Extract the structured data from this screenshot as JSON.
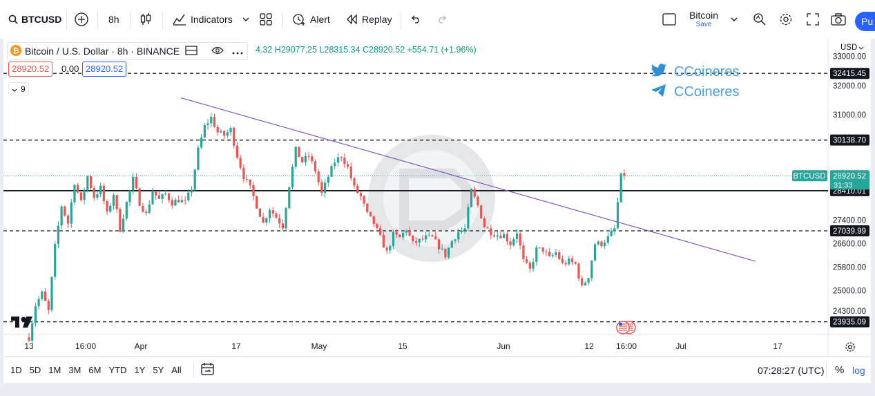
{
  "toolbar": {
    "symbol": "BTCUSD",
    "interval": "8h",
    "indicators_label": "Indicators",
    "alert_label": "Alert",
    "replay_label": "Replay",
    "layout_name": "Bitcoin",
    "layout_sub": "Save",
    "publish_label": "Pu"
  },
  "legend": {
    "title": "Bitcoin / U.S. Dollar · 8h · BINANCE",
    "ohlc": "4.32  H29077.25  L28315.34  C28920.52  +554.71 (+1.96%)",
    "bid": "28920.52",
    "spread": "0.00",
    "ask": "28920.52",
    "indicator_count": "9"
  },
  "watermark": {
    "twitter_handle": "CCoineres",
    "telegram_handle": "CCoineres"
  },
  "bottom": {
    "ranges": [
      "1D",
      "5D",
      "1M",
      "3M",
      "6M",
      "YTD",
      "1Y",
      "5Y",
      "All"
    ],
    "clock": "07:28:27 (UTC)",
    "percent": "%",
    "log": "log"
  },
  "colors": {
    "up": "#26a69a",
    "down": "#ef5350",
    "trendline": "#7e57c2",
    "accent": "#2962ff"
  },
  "chart_data": {
    "type": "candlestick",
    "currency": "USD",
    "y_range": [
      23500,
      33600
    ],
    "x_ticks": [
      "13",
      "16:00",
      "Apr",
      "17",
      "May",
      "15",
      "Jun",
      "12",
      "16:00",
      "Jul",
      "17"
    ],
    "y_ticks": [
      "33000.00",
      "32000.00",
      "31000.00",
      "27400.00",
      "26600.00",
      "25800.00",
      "25000.00",
      "24300.00"
    ],
    "levels": [
      {
        "label": "32415.45",
        "value": 32415.45,
        "style": "dashed"
      },
      {
        "label": "30138.70",
        "value": 30138.7,
        "style": "dashed"
      },
      {
        "label": "28410.01",
        "value": 28410.01,
        "style": "solid"
      },
      {
        "label": "27039.99",
        "value": 27039.99,
        "style": "dashed"
      },
      {
        "label": "23935.09",
        "value": 23935.09,
        "style": "dashed"
      }
    ],
    "last_price": {
      "symbol": "BTCUSD",
      "value": 28920.52,
      "countdown": "31:33"
    },
    "trendline": [
      {
        "date": "Apr 9",
        "value": 31580
      },
      {
        "date": "Jul 8",
        "value": 26000
      }
    ],
    "price_path": [
      [
        0,
        23400
      ],
      [
        2,
        24500
      ],
      [
        4,
        24900
      ],
      [
        6,
        24300
      ],
      [
        8,
        26500
      ],
      [
        10,
        27900
      ],
      [
        12,
        27300
      ],
      [
        14,
        28700
      ],
      [
        16,
        28000
      ],
      [
        18,
        28900
      ],
      [
        20,
        28200
      ],
      [
        22,
        28500
      ],
      [
        24,
        27600
      ],
      [
        26,
        28300
      ],
      [
        28,
        27100
      ],
      [
        30,
        28000
      ],
      [
        32,
        28800
      ],
      [
        34,
        28000
      ],
      [
        36,
        27600
      ],
      [
        38,
        28400
      ],
      [
        40,
        28100
      ],
      [
        42,
        28300
      ],
      [
        44,
        28000
      ],
      [
        46,
        28100
      ],
      [
        48,
        28000
      ],
      [
        50,
        28500
      ],
      [
        52,
        29800
      ],
      [
        54,
        30600
      ],
      [
        56,
        30900
      ],
      [
        58,
        30400
      ],
      [
        60,
        30300
      ],
      [
        62,
        30500
      ],
      [
        64,
        29600
      ],
      [
        66,
        28900
      ],
      [
        68,
        28500
      ],
      [
        70,
        27900
      ],
      [
        72,
        27300
      ],
      [
        74,
        27800
      ],
      [
        76,
        27500
      ],
      [
        78,
        27200
      ],
      [
        80,
        28600
      ],
      [
        82,
        29800
      ],
      [
        84,
        29400
      ],
      [
        86,
        29600
      ],
      [
        88,
        29100
      ],
      [
        90,
        28300
      ],
      [
        92,
        28900
      ],
      [
        94,
        29400
      ],
      [
        96,
        29600
      ],
      [
        98,
        29200
      ],
      [
        100,
        28500
      ],
      [
        102,
        28200
      ],
      [
        104,
        27600
      ],
      [
        106,
        27300
      ],
      [
        108,
        26800
      ],
      [
        110,
        26300
      ],
      [
        112,
        26900
      ],
      [
        114,
        26800
      ],
      [
        116,
        27100
      ],
      [
        118,
        26600
      ],
      [
        120,
        26700
      ],
      [
        122,
        26800
      ],
      [
        124,
        26800
      ],
      [
        126,
        26500
      ],
      [
        128,
        26200
      ],
      [
        130,
        26700
      ],
      [
        132,
        27000
      ],
      [
        134,
        27100
      ],
      [
        136,
        28400
      ],
      [
        138,
        27900
      ],
      [
        140,
        27200
      ],
      [
        142,
        27000
      ],
      [
        144,
        26900
      ],
      [
        146,
        26900
      ],
      [
        148,
        26600
      ],
      [
        150,
        27000
      ],
      [
        152,
        26000
      ],
      [
        154,
        25700
      ],
      [
        156,
        26400
      ],
      [
        158,
        26400
      ],
      [
        160,
        26100
      ],
      [
        162,
        26300
      ],
      [
        164,
        25900
      ],
      [
        166,
        26000
      ],
      [
        168,
        25900
      ],
      [
        170,
        25100
      ],
      [
        172,
        25500
      ],
      [
        174,
        26600
      ],
      [
        176,
        26600
      ],
      [
        178,
        26800
      ],
      [
        180,
        27100
      ],
      [
        182,
        28900
      ]
    ]
  }
}
